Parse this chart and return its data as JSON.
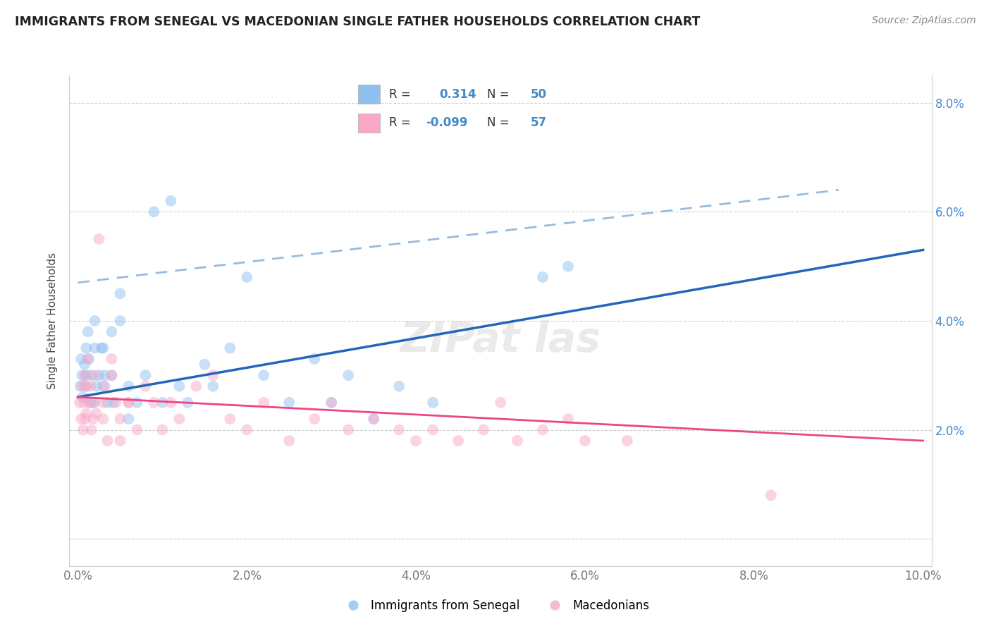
{
  "title": "IMMIGRANTS FROM SENEGAL VS MACEDONIAN SINGLE FATHER HOUSEHOLDS CORRELATION CHART",
  "source": "Source: ZipAtlas.com",
  "ylabel": "Single Father Households",
  "legend_label_1": "Immigrants from Senegal",
  "legend_label_2": "Macedonians",
  "color_senegal": "#90C0F0",
  "color_macedonian": "#F9A8C8",
  "color_senegal_line": "#2266BB",
  "color_macedonian_line": "#EE4488",
  "color_dashed": "#99BBDD",
  "xlim": [
    -0.001,
    0.101
  ],
  "ylim": [
    -0.005,
    0.085
  ],
  "xticks": [
    0.0,
    0.02,
    0.04,
    0.06,
    0.08,
    0.1
  ],
  "yticks": [
    0.0,
    0.02,
    0.04,
    0.06,
    0.08
  ],
  "xticklabels": [
    "0.0%",
    "2.0%",
    "4.0%",
    "6.0%",
    "8.0%",
    "10.0%"
  ],
  "right_yticklabels": [
    "",
    "2.0%",
    "4.0%",
    "6.0%",
    "8.0%"
  ],
  "senegal_x": [
    0.0003,
    0.0004,
    0.0005,
    0.0006,
    0.0008,
    0.0009,
    0.001,
    0.001,
    0.0012,
    0.0013,
    0.0015,
    0.0016,
    0.0018,
    0.002,
    0.002,
    0.0022,
    0.0025,
    0.0028,
    0.003,
    0.003,
    0.0032,
    0.0035,
    0.004,
    0.004,
    0.0042,
    0.005,
    0.005,
    0.006,
    0.006,
    0.007,
    0.008,
    0.009,
    0.01,
    0.011,
    0.012,
    0.013,
    0.015,
    0.016,
    0.018,
    0.02,
    0.022,
    0.025,
    0.028,
    0.03,
    0.032,
    0.035,
    0.038,
    0.042,
    0.055,
    0.058
  ],
  "senegal_y": [
    0.028,
    0.033,
    0.03,
    0.026,
    0.032,
    0.028,
    0.035,
    0.03,
    0.038,
    0.033,
    0.025,
    0.03,
    0.025,
    0.04,
    0.035,
    0.028,
    0.03,
    0.035,
    0.028,
    0.035,
    0.03,
    0.025,
    0.03,
    0.038,
    0.025,
    0.045,
    0.04,
    0.022,
    0.028,
    0.025,
    0.03,
    0.06,
    0.025,
    0.062,
    0.028,
    0.025,
    0.032,
    0.028,
    0.035,
    0.048,
    0.03,
    0.025,
    0.033,
    0.025,
    0.03,
    0.022,
    0.028,
    0.025,
    0.048,
    0.05
  ],
  "macedonian_x": [
    0.0002,
    0.0004,
    0.0005,
    0.0006,
    0.0007,
    0.0008,
    0.0009,
    0.001,
    0.001,
    0.0012,
    0.0013,
    0.0015,
    0.0016,
    0.0018,
    0.002,
    0.002,
    0.0022,
    0.0025,
    0.003,
    0.003,
    0.0032,
    0.0035,
    0.004,
    0.004,
    0.0045,
    0.005,
    0.005,
    0.006,
    0.006,
    0.007,
    0.008,
    0.009,
    0.01,
    0.011,
    0.012,
    0.014,
    0.016,
    0.018,
    0.02,
    0.022,
    0.025,
    0.028,
    0.03,
    0.032,
    0.035,
    0.038,
    0.04,
    0.042,
    0.045,
    0.048,
    0.05,
    0.052,
    0.055,
    0.058,
    0.06,
    0.065,
    0.082
  ],
  "macedonian_y": [
    0.025,
    0.022,
    0.028,
    0.02,
    0.025,
    0.03,
    0.022,
    0.028,
    0.023,
    0.033,
    0.025,
    0.028,
    0.02,
    0.022,
    0.025,
    0.03,
    0.023,
    0.055,
    0.025,
    0.022,
    0.028,
    0.018,
    0.033,
    0.03,
    0.025,
    0.022,
    0.018,
    0.025,
    0.025,
    0.02,
    0.028,
    0.025,
    0.02,
    0.025,
    0.022,
    0.028,
    0.03,
    0.022,
    0.02,
    0.025,
    0.018,
    0.022,
    0.025,
    0.02,
    0.022,
    0.02,
    0.018,
    0.02,
    0.018,
    0.02,
    0.025,
    0.018,
    0.02,
    0.022,
    0.018,
    0.018,
    0.008
  ],
  "senegal_trend_x": [
    0.0,
    0.1
  ],
  "senegal_trend_y": [
    0.026,
    0.053
  ],
  "macedonian_trend_x": [
    0.0,
    0.1
  ],
  "macedonian_trend_y": [
    0.026,
    0.018
  ],
  "dashed_trend_x": [
    0.0,
    0.09
  ],
  "dashed_trend_y": [
    0.047,
    0.064
  ],
  "background_color": "#FFFFFF",
  "grid_color": "#CCCCCC",
  "dot_size": 130,
  "dot_alpha": 0.5
}
